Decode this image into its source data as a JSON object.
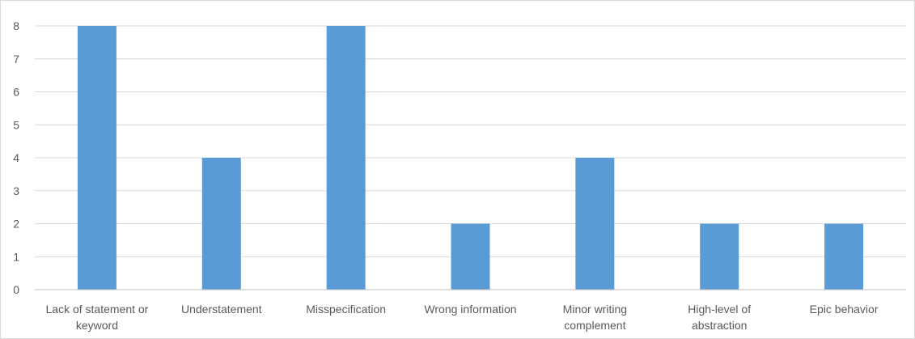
{
  "chart_data": {
    "type": "bar",
    "title": "",
    "xlabel": "",
    "ylabel": "",
    "categories": [
      [
        "Lack of statement or",
        "keyword"
      ],
      [
        "Understatement"
      ],
      [
        "Misspecification"
      ],
      [
        "Wrong information"
      ],
      [
        "Minor writing",
        "complement"
      ],
      [
        "High-level of",
        "abstraction"
      ],
      [
        "Epic behavior"
      ]
    ],
    "values": [
      8,
      4,
      8,
      2,
      4,
      2,
      2
    ],
    "ylim": [
      0,
      8
    ],
    "yticks": [
      0,
      1,
      2,
      3,
      4,
      5,
      6,
      7,
      8
    ],
    "grid": true,
    "legend": "none",
    "bar_color": "#5b9bd5",
    "grid_color": "#d9d9d9",
    "label_color": "#595959"
  }
}
